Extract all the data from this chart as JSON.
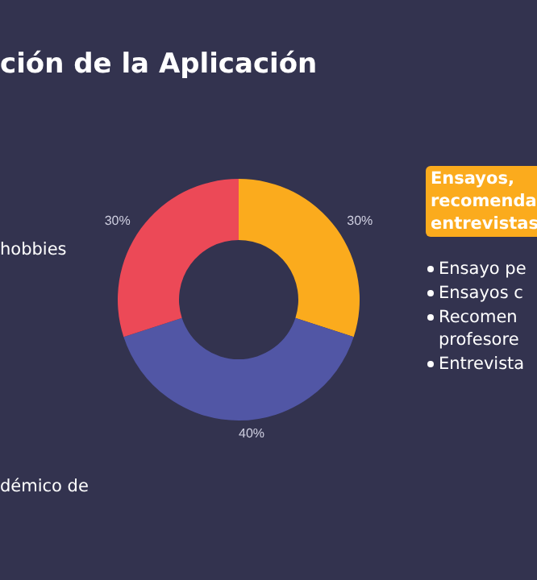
{
  "chart_data": {
    "type": "donut",
    "title": "ción de la Aplicación",
    "categories": [
      null,
      null,
      null
    ],
    "values": [
      30,
      40,
      30
    ],
    "colors": [
      "#fbab1d",
      "#5156a5",
      "#ec4957"
    ],
    "value_labels": [
      "30%",
      "40%",
      "30%"
    ],
    "annotations": [
      "hobbies",
      "démico de",
      "Ensayos,\nrecomenda\nentrevistas",
      "Ensayo pe",
      "Ensayos c",
      "Recomen\nprofesore",
      "Entrevista"
    ]
  }
}
